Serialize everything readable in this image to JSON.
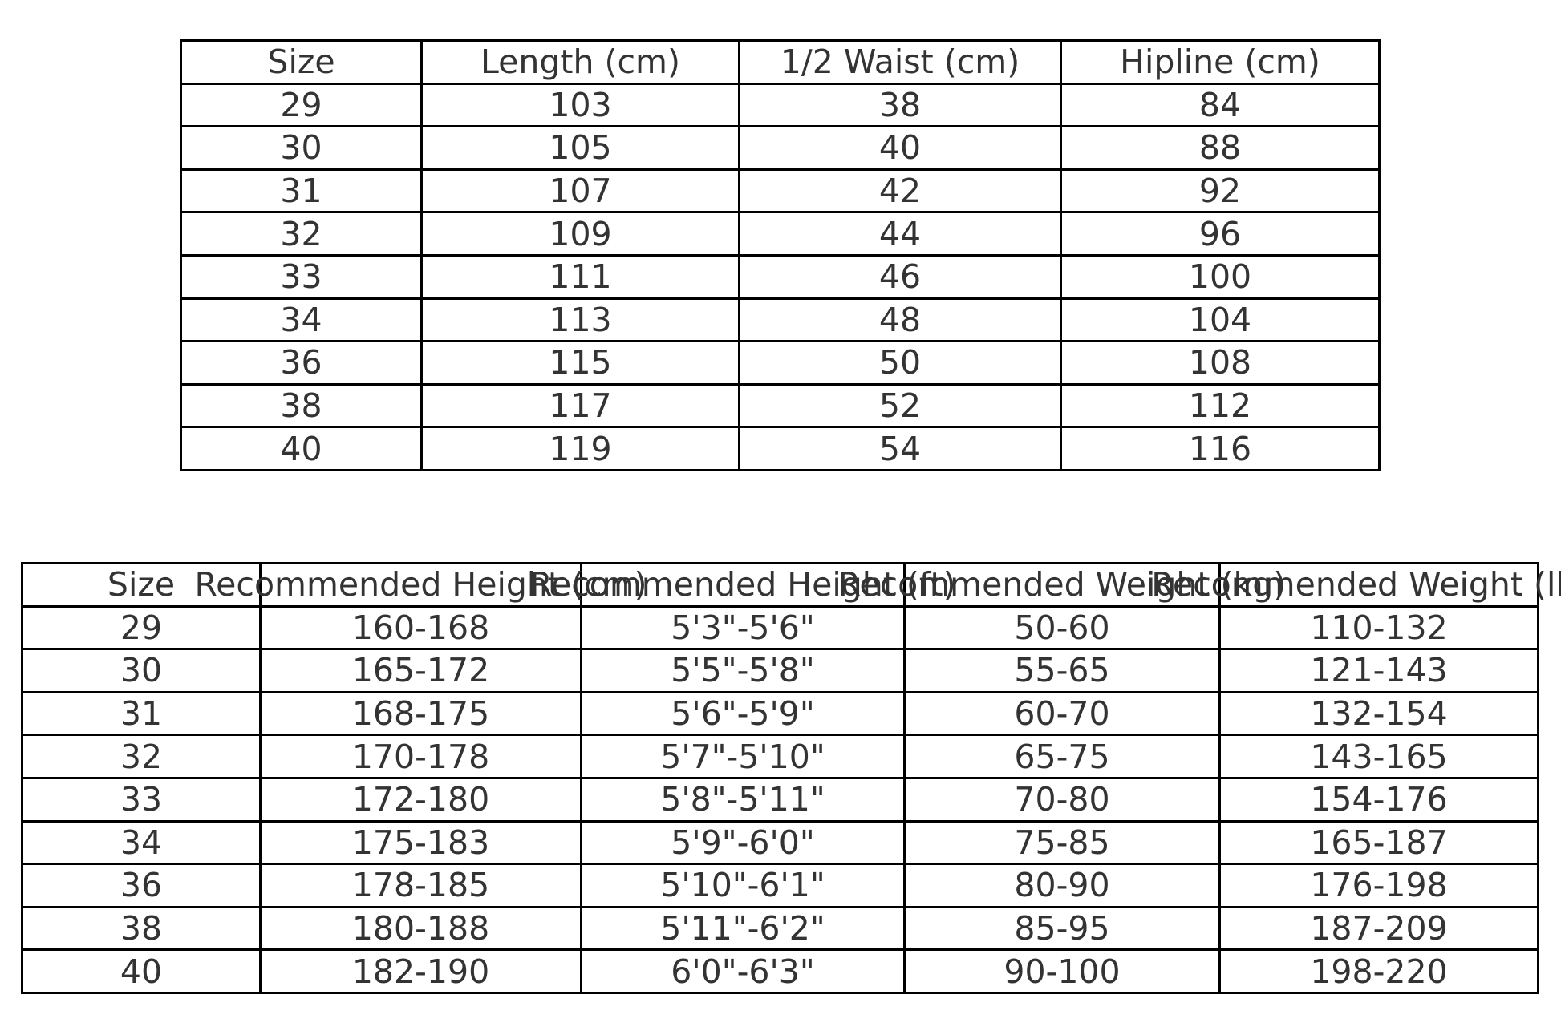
{
  "page": {
    "background_color": "#ffffff",
    "text_color": "#333333",
    "border_color": "#000000"
  },
  "chart_data": [
    {
      "type": "table",
      "name": "size-measurements-table",
      "columns": [
        "Size",
        "Length (cm)",
        "1/2 Waist (cm)",
        "Hipline (cm)"
      ],
      "rows": [
        [
          "29",
          "103",
          "38",
          "84"
        ],
        [
          "30",
          "105",
          "40",
          "88"
        ],
        [
          "31",
          "107",
          "42",
          "92"
        ],
        [
          "32",
          "109",
          "44",
          "96"
        ],
        [
          "33",
          "111",
          "46",
          "100"
        ],
        [
          "34",
          "113",
          "48",
          "104"
        ],
        [
          "36",
          "115",
          "50",
          "108"
        ],
        [
          "38",
          "117",
          "52",
          "112"
        ],
        [
          "40",
          "119",
          "54",
          "116"
        ]
      ],
      "layout": {
        "grid": true,
        "header_row": true
      }
    },
    {
      "type": "table",
      "name": "height-weight-recommendation-table",
      "columns": [
        "Size",
        "Recommended Height (cm)",
        "Recommended Height (ft)",
        "Recommended Weight (kg)",
        "Recommended Weight (lbs)"
      ],
      "rows": [
        [
          "29",
          "160-168",
          "5'3\"-5'6\"",
          "50-60",
          "110-132"
        ],
        [
          "30",
          "165-172",
          "5'5\"-5'8\"",
          "55-65",
          "121-143"
        ],
        [
          "31",
          "168-175",
          "5'6\"-5'9\"",
          "60-70",
          "132-154"
        ],
        [
          "32",
          "170-178",
          "5'7\"-5'10\"",
          "65-75",
          "143-165"
        ],
        [
          "33",
          "172-180",
          "5'8\"-5'11\"",
          "70-80",
          "154-176"
        ],
        [
          "34",
          "175-183",
          "5'9\"-6'0\"",
          "75-85",
          "165-187"
        ],
        [
          "36",
          "178-185",
          "5'10\"-6'1\"",
          "80-90",
          "176-198"
        ],
        [
          "38",
          "180-188",
          "5'11\"-6'2\"",
          "85-95",
          "187-209"
        ],
        [
          "40",
          "182-190",
          "6'0\"-6'3\"",
          "90-100",
          "198-220"
        ]
      ],
      "layout": {
        "grid": true,
        "header_row": true,
        "header_text_overflows": true,
        "last_header_clipped_at_right_edge": true
      }
    }
  ]
}
